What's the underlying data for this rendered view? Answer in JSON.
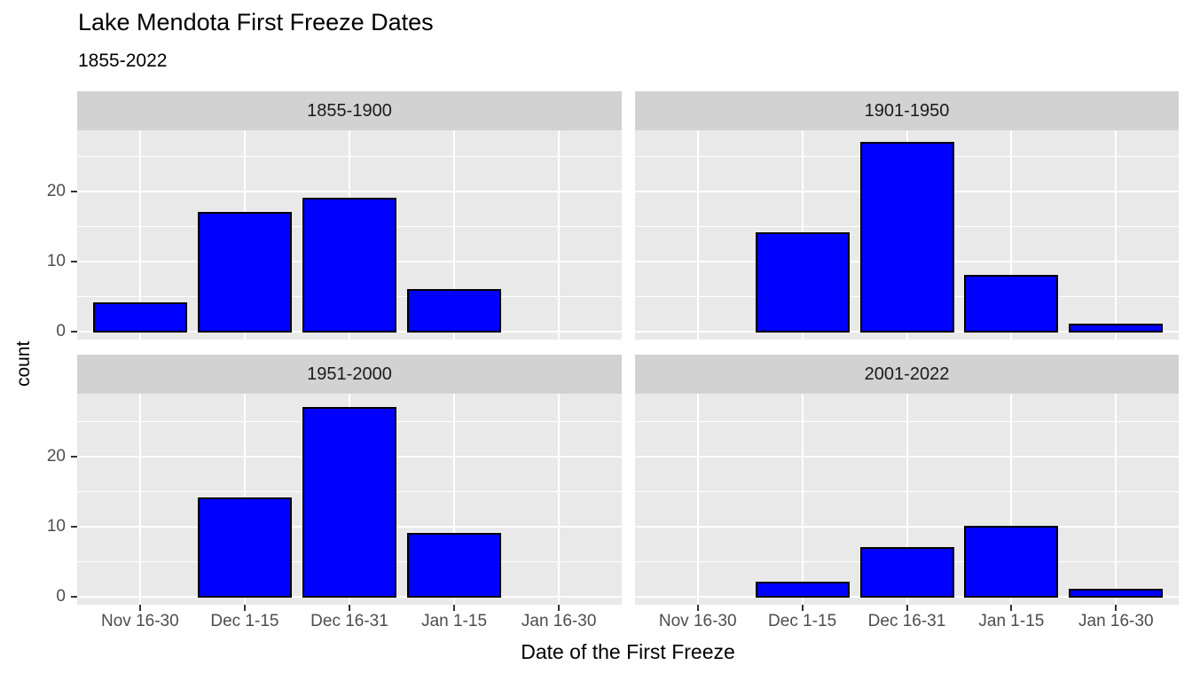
{
  "title": "Lake Mendota First Freeze Dates",
  "subtitle": "1855-2022",
  "x_axis_title": "Date of the First Freeze",
  "y_axis_title": "count",
  "chart_data": {
    "type": "bar",
    "layout": "facet-grid-2x2",
    "categories": [
      "Nov 16-30",
      "Dec 1-15",
      "Dec 16-31",
      "Jan 1-15",
      "Jan 16-30"
    ],
    "facets": [
      {
        "label": "1855-1900",
        "values": [
          4,
          17,
          19,
          6,
          0
        ]
      },
      {
        "label": "1901-1950",
        "values": [
          0,
          14,
          27,
          8,
          1
        ]
      },
      {
        "label": "1951-2000",
        "values": [
          0,
          14,
          27,
          9,
          0
        ]
      },
      {
        "label": "2001-2022",
        "values": [
          0,
          2,
          7,
          10,
          1
        ]
      }
    ],
    "y_ticks": [
      0,
      10,
      20
    ],
    "y_minor_ticks": [
      5,
      15,
      25
    ],
    "ylim": [
      0,
      28
    ],
    "grid": true,
    "legend": "none",
    "colors": {
      "bar_fill": "#0000FF",
      "bar_stroke": "#000000",
      "panel_bg": "#E9E9E9",
      "strip_bg": "#D2D2D2",
      "grid": "#FFFFFF",
      "tick_label": "#4D4D4D",
      "tick_mark": "#333333"
    }
  }
}
